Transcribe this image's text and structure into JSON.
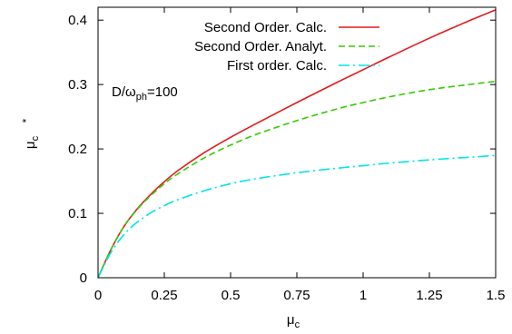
{
  "chart_data": {
    "type": "line",
    "title": "",
    "xlabel": "μ",
    "xlabel_sub": "c",
    "ylabel": "μ",
    "ylabel_sub": "c",
    "ylabel_sup": "*",
    "xlim": [
      0,
      1.5
    ],
    "ylim": [
      0,
      0.42
    ],
    "xticks": [
      0,
      0.25,
      0.5,
      0.75,
      1,
      1.25,
      1.5
    ],
    "xtick_labels": [
      "0",
      "0.25",
      "0.5",
      "0.75",
      "1",
      "1.25",
      "1.5"
    ],
    "yticks": [
      0,
      0.1,
      0.2,
      0.3,
      0.4
    ],
    "ytick_labels": [
      "0",
      "0.1",
      "0.2",
      "0.3",
      "0.4"
    ],
    "grid": false,
    "legend_position": "top-left",
    "annotation": {
      "prefix": "D/ω",
      "sub": "ph",
      "suffix": "=100"
    },
    "series": [
      {
        "name": "Second Order. Calc.",
        "color": "#e41a1c",
        "dash": "solid",
        "x": [
          0,
          0.05,
          0.1,
          0.15,
          0.2,
          0.25,
          0.3,
          0.4,
          0.5,
          0.6,
          0.75,
          0.9,
          1.0,
          1.1,
          1.25,
          1.4,
          1.5
        ],
        "y": [
          0,
          0.045,
          0.081,
          0.108,
          0.13,
          0.149,
          0.166,
          0.194,
          0.218,
          0.24,
          0.272,
          0.303,
          0.323,
          0.343,
          0.372,
          0.399,
          0.416
        ]
      },
      {
        "name": "Second Order. Analyt.",
        "color": "#33cc00",
        "dash": "dashed",
        "x": [
          0,
          0.05,
          0.1,
          0.15,
          0.2,
          0.25,
          0.3,
          0.4,
          0.5,
          0.6,
          0.75,
          0.9,
          1.0,
          1.1,
          1.25,
          1.4,
          1.5
        ],
        "y": [
          0,
          0.045,
          0.081,
          0.107,
          0.128,
          0.146,
          0.161,
          0.186,
          0.206,
          0.223,
          0.244,
          0.262,
          0.272,
          0.281,
          0.292,
          0.3,
          0.305
        ]
      },
      {
        "name": "First order. Calc.",
        "color": "#00e5e5",
        "dash": "dashdot",
        "x": [
          0,
          0.05,
          0.1,
          0.15,
          0.2,
          0.25,
          0.3,
          0.4,
          0.5,
          0.6,
          0.75,
          0.9,
          1.0,
          1.1,
          1.25,
          1.4,
          1.5
        ],
        "y": [
          0,
          0.04,
          0.068,
          0.087,
          0.101,
          0.112,
          0.121,
          0.135,
          0.146,
          0.154,
          0.163,
          0.17,
          0.174,
          0.178,
          0.183,
          0.187,
          0.19
        ]
      }
    ]
  }
}
